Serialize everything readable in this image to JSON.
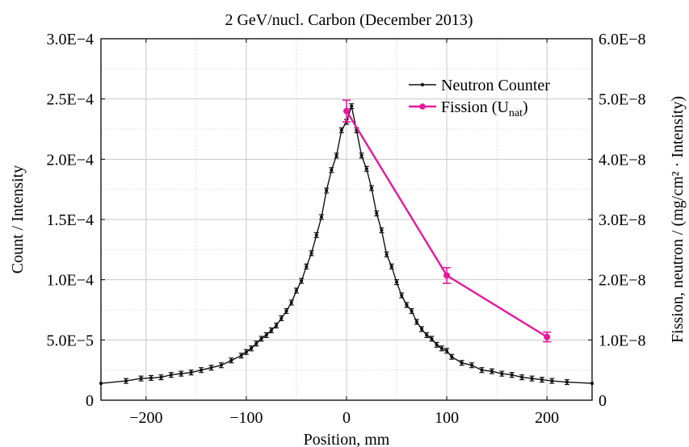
{
  "colors": {
    "neutron": "#111111",
    "fission": "#e6199b",
    "grid": "#c8c8c8",
    "frame": "#000000"
  },
  "chart_data": {
    "type": "line",
    "title": "2 GeV/nucl. Carbon (December 2013)",
    "xlabel": "Position, mm",
    "ylabel": "Count / Intensity",
    "y2label": "Fission, neutron / (mg/cm² · Intensity)",
    "xlim": [
      -245,
      245
    ],
    "ylim": [
      0,
      0.0003
    ],
    "y2lim": [
      0,
      6e-08
    ],
    "grid": true,
    "legend_position": "top-right",
    "x_ticks": [
      "−200",
      "−100",
      "0",
      "100",
      "200"
    ],
    "x_tick_values": [
      -200,
      -100,
      0,
      100,
      200
    ],
    "y_ticks": [
      "0",
      "5.0E−5",
      "1.0E−4",
      "1.5E−4",
      "2.0E−4",
      "2.5E−4",
      "3.0E−4"
    ],
    "y_tick_values": [
      0,
      5e-05,
      0.0001,
      0.00015,
      0.0002,
      0.00025,
      0.0003
    ],
    "y2_ticks": [
      "0",
      "1.0E−8",
      "2.0E−8",
      "3.0E−8",
      "4.0E−8",
      "5.0E−8",
      "6.0E−8"
    ],
    "y2_tick_values": [
      0,
      1e-08,
      2e-08,
      3e-08,
      4e-08,
      5e-08,
      6e-08
    ],
    "series": [
      {
        "name": "Neutron Counter",
        "axis": "left",
        "x": [
          -245,
          -220,
          -205,
          -195,
          -185,
          -175,
          -165,
          -155,
          -145,
          -135,
          -125,
          -115,
          -105,
          -100,
          -95,
          -90,
          -85,
          -80,
          -75,
          -70,
          -65,
          -60,
          -55,
          -50,
          -45,
          -40,
          -35,
          -30,
          -25,
          -20,
          -15,
          -10,
          -5,
          0,
          5,
          10,
          15,
          20,
          25,
          30,
          35,
          40,
          45,
          50,
          55,
          60,
          65,
          70,
          75,
          80,
          85,
          90,
          95,
          100,
          105,
          115,
          125,
          135,
          145,
          155,
          165,
          175,
          185,
          195,
          205,
          220,
          245
        ],
        "y": [
          1.4e-05,
          1.6e-05,
          1.8e-05,
          1.85e-05,
          1.9e-05,
          2.1e-05,
          2.2e-05,
          2.3e-05,
          2.5e-05,
          2.7e-05,
          2.9e-05,
          3.3e-05,
          3.7e-05,
          4e-05,
          4.3e-05,
          4.7e-05,
          5.1e-05,
          5.4e-05,
          5.8e-05,
          6.2e-05,
          6.8e-05,
          7.4e-05,
          8.1e-05,
          9.1e-05,
          9.9e-05,
          0.000111,
          0.000122,
          0.000137,
          0.000152,
          0.000174,
          0.000191,
          0.000203,
          0.000224,
          0.000231,
          0.000244,
          0.000224,
          0.000203,
          0.000192,
          0.000176,
          0.000155,
          0.000141,
          0.000121,
          0.000111,
          9.8e-05,
          8.7e-05,
          7.9e-05,
          7.4e-05,
          6.5e-05,
          5.9e-05,
          5.4e-05,
          5.1e-05,
          4.6e-05,
          4.3e-05,
          4.1e-05,
          3.6e-05,
          3.1e-05,
          2.9e-05,
          2.5e-05,
          2.4e-05,
          2.2e-05,
          2.1e-05,
          1.9e-05,
          1.8e-05,
          1.7e-05,
          1.6e-05,
          1.5e-05,
          1.4e-05
        ],
        "yerr": 2e-06
      },
      {
        "name": "Fission (U",
        "name_sub": "nat",
        "name_end": ")",
        "axis": "right",
        "x": [
          0,
          100,
          200
        ],
        "y": [
          4.8e-08,
          2.07e-08,
          1.05e-08
        ],
        "yerr": [
          1.8e-09,
          1.3e-09,
          8e-10
        ]
      }
    ]
  }
}
